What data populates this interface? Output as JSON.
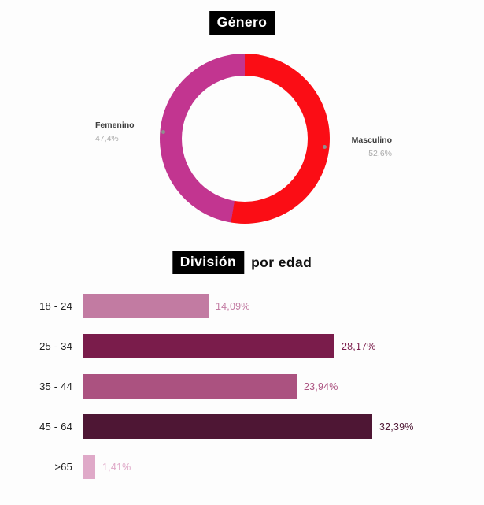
{
  "page": {
    "background_color": "#fdfdfd",
    "title_highlight_bg": "#000000",
    "title_highlight_fg": "#ffffff"
  },
  "chart_data": [
    {
      "type": "pie",
      "subtype": "donut",
      "title": "Género",
      "labels": [
        "Masculino",
        "Femenino"
      ],
      "values": [
        52.6,
        47.4
      ],
      "value_labels": [
        "52,6%",
        "47,4%"
      ],
      "colors": [
        "#fb0d15",
        "#c23590"
      ],
      "start_angle_deg": 0,
      "direction": "clockwise",
      "legend": "leader-line annotations, Femenino left / Masculino right",
      "annotation_label_color": "#3e3e3e",
      "annotation_value_color": "#ababab",
      "leader_line_color": "#8f8f8f"
    },
    {
      "type": "bar",
      "orientation": "horizontal",
      "title": "División por edad",
      "title_highlight": "División",
      "title_rest": "por edad",
      "categories": [
        "18 - 24",
        "25 - 34",
        "35 - 44",
        "45 - 64",
        ">65"
      ],
      "values": [
        14.09,
        28.17,
        23.94,
        32.39,
        1.41
      ],
      "value_labels": [
        "14,09%",
        "28,17%",
        "23,94%",
        "32,39%",
        "1,41%"
      ],
      "colors": [
        "#c27ba2",
        "#7a1c4b",
        "#ab5280",
        "#4e1634",
        "#dfa9c8"
      ],
      "value_label_position": "right-of-bar",
      "value_labels_colored_as_bars": true,
      "category_label_color": "#1d1d1d",
      "xlim": [
        0,
        35
      ],
      "grid": false
    }
  ]
}
